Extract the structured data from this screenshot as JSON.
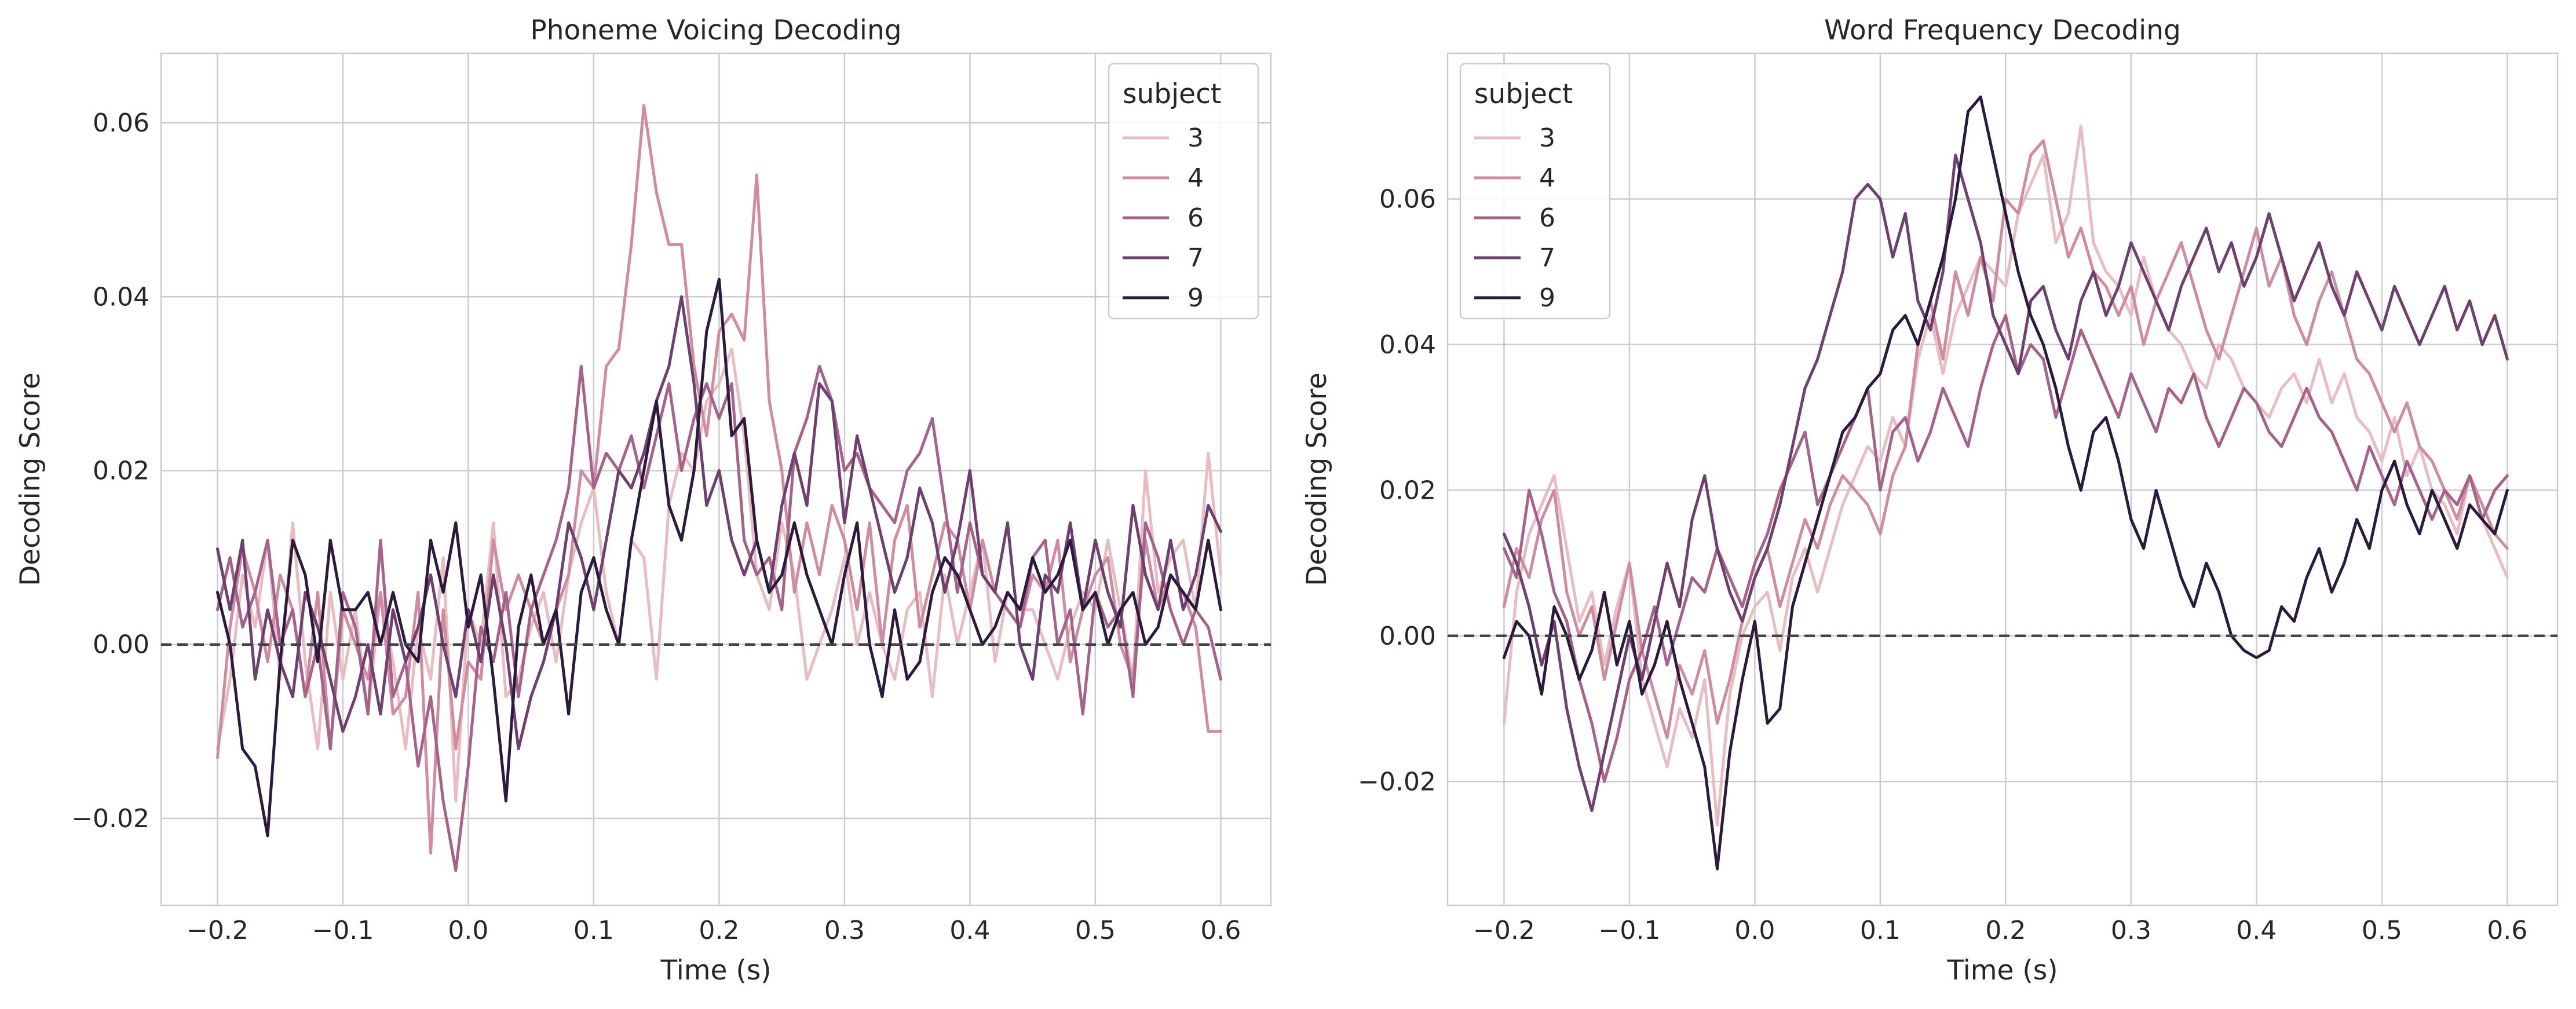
{
  "chart_data": [
    {
      "type": "line",
      "title": "Phoneme Voicing Decoding",
      "xlabel": "Time (s)",
      "ylabel": "Decoding Score",
      "xlim": [
        -0.245,
        0.64
      ],
      "ylim": [
        -0.03,
        0.068
      ],
      "xticks": [
        -0.2,
        -0.1,
        0.0,
        0.1,
        0.2,
        0.3,
        0.4,
        0.5,
        0.6
      ],
      "xtick_labels": [
        "−0.2",
        "−0.1",
        "0.0",
        "0.1",
        "0.2",
        "0.3",
        "0.4",
        "0.5",
        "0.6"
      ],
      "yticks": [
        -0.02,
        0.0,
        0.02,
        0.04,
        0.06
      ],
      "ytick_labels": [
        "−0.02",
        "0.00",
        "0.02",
        "0.04",
        "0.06"
      ],
      "zero_line": 0,
      "grid": true,
      "legend": {
        "title": "subject",
        "position": "upper-right"
      },
      "x": {
        "start": -0.2,
        "stop": 0.6,
        "step": 0.01
      },
      "series": [
        {
          "name": "3",
          "color": "#e9bcc2",
          "values": [
            -0.012,
            -0.004,
            0.008,
            0.002,
            0.012,
            -0.004,
            0.014,
            -0.002,
            -0.012,
            0.006,
            -0.004,
            0.004,
            -0.008,
            0.006,
            -0.002,
            -0.012,
            0.002,
            -0.004,
            0.01,
            -0.018,
            0.004,
            0.0,
            0.014,
            -0.006,
            -0.004,
            0.002,
            0.006,
            -0.002,
            0.008,
            0.014,
            0.018,
            0.006,
            0.0,
            0.012,
            0.01,
            -0.004,
            0.016,
            0.022,
            0.02,
            0.028,
            0.03,
            0.034,
            0.024,
            0.008,
            0.004,
            0.014,
            0.008,
            -0.004,
            0.0,
            0.004,
            0.01,
            0.0,
            0.006,
            0.0,
            -0.004,
            0.004,
            0.006,
            -0.006,
            0.008,
            0.0,
            0.006,
            0.012,
            -0.002,
            0.006,
            0.004,
            0.004,
            0.0,
            -0.004,
            0.002,
            0.006,
            0.004,
            0.012,
            0.004,
            -0.004,
            0.02,
            0.006,
            0.01,
            0.012,
            0.004,
            0.022,
            0.008
          ]
        },
        {
          "name": "4",
          "color": "#d08b9f",
          "values": [
            -0.013,
            0.002,
            0.011,
            0.006,
            -0.002,
            0.008,
            0.004,
            -0.006,
            0.006,
            -0.012,
            0.004,
            0.0,
            -0.004,
            0.006,
            -0.008,
            -0.006,
            0.006,
            -0.024,
            0.004,
            -0.012,
            -0.002,
            -0.004,
            0.012,
            0.004,
            0.008,
            0.004,
            0.0,
            0.004,
            0.008,
            0.02,
            0.018,
            0.032,
            0.034,
            0.046,
            0.062,
            0.052,
            0.046,
            0.046,
            0.032,
            0.024,
            0.036,
            0.038,
            0.035,
            0.054,
            0.028,
            0.02,
            0.006,
            0.014,
            0.008,
            0.016,
            0.012,
            0.004,
            0.014,
            0.0,
            0.012,
            0.016,
            0.002,
            0.008,
            0.014,
            0.012,
            0.004,
            0.012,
            0.006,
            0.004,
            0.002,
            0.008,
            0.006,
            0.012,
            -0.002,
            0.004,
            0.008,
            0.01,
            0.0,
            -0.004,
            0.012,
            0.004,
            0.008,
            0.006,
            0.002,
            -0.01,
            -0.01
          ]
        },
        {
          "name": "6",
          "color": "#a6628b",
          "values": [
            0.004,
            0.01,
            0.002,
            0.006,
            0.012,
            0.0,
            0.004,
            -0.006,
            0.0,
            -0.012,
            0.006,
            0.002,
            -0.008,
            0.012,
            -0.006,
            -0.002,
            -0.014,
            -0.006,
            -0.018,
            -0.026,
            -0.014,
            0.002,
            -0.002,
            0.006,
            -0.006,
            0.004,
            0.008,
            0.012,
            0.018,
            0.032,
            0.018,
            0.022,
            0.02,
            0.024,
            0.018,
            0.024,
            0.03,
            0.02,
            0.026,
            0.03,
            0.026,
            0.03,
            0.012,
            0.008,
            0.01,
            0.004,
            0.022,
            0.026,
            0.032,
            0.028,
            0.02,
            0.022,
            0.018,
            0.016,
            0.014,
            0.02,
            0.022,
            0.026,
            0.016,
            0.006,
            0.014,
            0.008,
            0.006,
            0.004,
            0.002,
            0.01,
            0.012,
            0.0,
            0.004,
            -0.008,
            0.006,
            0.002,
            0.004,
            -0.006,
            0.014,
            0.01,
            0.004,
            0.0,
            0.004,
            0.002,
            -0.004
          ]
        },
        {
          "name": "7",
          "color": "#6f3f70",
          "values": [
            0.011,
            0.004,
            0.012,
            -0.004,
            0.004,
            -0.002,
            -0.006,
            0.006,
            0.002,
            -0.004,
            -0.01,
            -0.006,
            0.0,
            -0.008,
            0.004,
            -0.002,
            0.002,
            0.008,
            0.0,
            -0.006,
            0.004,
            -0.002,
            0.008,
            0.0,
            -0.012,
            -0.006,
            -0.002,
            0.004,
            0.014,
            0.01,
            0.004,
            0.012,
            0.02,
            0.018,
            0.022,
            0.028,
            0.032,
            0.04,
            0.03,
            0.016,
            0.02,
            0.012,
            0.008,
            0.012,
            0.006,
            0.016,
            0.022,
            0.016,
            0.03,
            0.028,
            0.014,
            0.024,
            0.018,
            0.012,
            0.006,
            0.01,
            0.018,
            0.014,
            0.006,
            0.012,
            0.02,
            0.008,
            0.006,
            0.014,
            0.0,
            -0.004,
            0.008,
            0.006,
            0.014,
            0.004,
            0.012,
            0.006,
            0.002,
            0.016,
            0.008,
            0.004,
            0.012,
            0.004,
            0.008,
            0.016,
            0.013
          ]
        },
        {
          "name": "9",
          "color": "#2b1a3d",
          "values": [
            0.006,
            0.0,
            -0.012,
            -0.014,
            -0.022,
            -0.002,
            0.012,
            0.008,
            -0.002,
            0.012,
            0.004,
            0.004,
            0.006,
            0.0,
            0.006,
            0.0,
            -0.002,
            0.012,
            0.006,
            0.014,
            0.002,
            0.008,
            -0.004,
            -0.018,
            0.002,
            0.008,
            0.0,
            0.004,
            -0.008,
            0.006,
            0.01,
            0.004,
            0.0,
            0.012,
            0.02,
            0.028,
            0.016,
            0.012,
            0.02,
            0.036,
            0.042,
            0.024,
            0.026,
            0.012,
            0.006,
            0.008,
            0.014,
            0.008,
            0.004,
            0.0,
            0.008,
            0.014,
            0.0,
            -0.006,
            0.004,
            -0.004,
            -0.002,
            0.006,
            0.01,
            0.008,
            0.004,
            0.0,
            0.002,
            0.006,
            0.004,
            0.01,
            0.006,
            0.008,
            0.012,
            0.004,
            0.006,
            0.0,
            0.004,
            0.006,
            0.0,
            0.002,
            0.008,
            0.006,
            0.004,
            0.012,
            0.004
          ]
        }
      ]
    },
    {
      "type": "line",
      "title": "Word Frequency Decoding",
      "xlabel": "Time (s)",
      "ylabel": "Decoding Score",
      "xlim": [
        -0.245,
        0.64
      ],
      "ylim": [
        -0.037,
        0.08
      ],
      "xticks": [
        -0.2,
        -0.1,
        0.0,
        0.1,
        0.2,
        0.3,
        0.4,
        0.5,
        0.6
      ],
      "xtick_labels": [
        "−0.2",
        "−0.1",
        "0.0",
        "0.1",
        "0.2",
        "0.3",
        "0.4",
        "0.5",
        "0.6"
      ],
      "yticks": [
        -0.02,
        0.0,
        0.02,
        0.04,
        0.06
      ],
      "ytick_labels": [
        "−0.02",
        "0.00",
        "0.02",
        "0.04",
        "0.06"
      ],
      "zero_line": 0,
      "grid": true,
      "legend": {
        "title": "subject",
        "position": "upper-left"
      },
      "x": {
        "start": -0.2,
        "stop": 0.6,
        "step": 0.01
      },
      "series": [
        {
          "name": "3",
          "color": "#e9bcc2",
          "values": [
            -0.012,
            0.006,
            0.014,
            0.018,
            0.022,
            0.012,
            0.002,
            0.006,
            -0.004,
            0.004,
            0.01,
            -0.006,
            -0.012,
            -0.018,
            -0.01,
            -0.014,
            -0.006,
            -0.026,
            -0.008,
            0.0,
            0.004,
            0.006,
            -0.002,
            0.008,
            0.012,
            0.006,
            0.012,
            0.018,
            0.022,
            0.026,
            0.024,
            0.03,
            0.026,
            0.038,
            0.044,
            0.036,
            0.044,
            0.048,
            0.052,
            0.05,
            0.048,
            0.058,
            0.062,
            0.066,
            0.054,
            0.058,
            0.07,
            0.054,
            0.05,
            0.048,
            0.044,
            0.052,
            0.046,
            0.042,
            0.04,
            0.036,
            0.034,
            0.04,
            0.038,
            0.034,
            0.032,
            0.03,
            0.034,
            0.036,
            0.032,
            0.038,
            0.032,
            0.036,
            0.03,
            0.028,
            0.024,
            0.03,
            0.022,
            0.026,
            0.02,
            0.018,
            0.014,
            0.022,
            0.016,
            0.012,
            0.008
          ]
        },
        {
          "name": "4",
          "color": "#d08b9f",
          "values": [
            0.004,
            0.012,
            0.008,
            0.016,
            0.02,
            0.006,
            0.0,
            0.004,
            -0.006,
            0.002,
            0.01,
            -0.002,
            -0.008,
            -0.014,
            -0.004,
            -0.008,
            -0.002,
            -0.012,
            -0.006,
            0.002,
            0.008,
            0.012,
            0.004,
            0.01,
            0.016,
            0.012,
            0.018,
            0.022,
            0.02,
            0.018,
            0.014,
            0.022,
            0.026,
            0.04,
            0.046,
            0.038,
            0.05,
            0.044,
            0.052,
            0.046,
            0.06,
            0.058,
            0.066,
            0.068,
            0.06,
            0.052,
            0.056,
            0.05,
            0.048,
            0.044,
            0.048,
            0.04,
            0.046,
            0.05,
            0.054,
            0.048,
            0.042,
            0.038,
            0.044,
            0.05,
            0.056,
            0.048,
            0.052,
            0.044,
            0.04,
            0.046,
            0.05,
            0.044,
            0.038,
            0.036,
            0.032,
            0.028,
            0.032,
            0.026,
            0.024,
            0.02,
            0.016,
            0.022,
            0.018,
            0.014,
            0.012
          ]
        },
        {
          "name": "6",
          "color": "#a6628b",
          "values": [
            0.012,
            0.008,
            0.02,
            0.014,
            0.006,
            0.002,
            -0.006,
            -0.012,
            -0.02,
            -0.014,
            -0.006,
            -0.002,
            0.004,
            -0.004,
            0.002,
            0.008,
            0.006,
            0.012,
            0.008,
            0.004,
            0.01,
            0.014,
            0.02,
            0.024,
            0.028,
            0.018,
            0.022,
            0.026,
            0.03,
            0.034,
            0.02,
            0.028,
            0.03,
            0.024,
            0.028,
            0.034,
            0.03,
            0.026,
            0.034,
            0.04,
            0.044,
            0.036,
            0.04,
            0.038,
            0.03,
            0.036,
            0.042,
            0.038,
            0.034,
            0.03,
            0.036,
            0.032,
            0.028,
            0.034,
            0.032,
            0.036,
            0.03,
            0.026,
            0.03,
            0.034,
            0.032,
            0.028,
            0.026,
            0.03,
            0.034,
            0.03,
            0.028,
            0.024,
            0.02,
            0.026,
            0.022,
            0.018,
            0.024,
            0.02,
            0.016,
            0.02,
            0.018,
            0.022,
            0.016,
            0.02,
            0.022
          ]
        },
        {
          "name": "7",
          "color": "#6f3f70",
          "values": [
            0.014,
            0.01,
            0.004,
            -0.004,
            0.002,
            -0.01,
            -0.018,
            -0.024,
            -0.016,
            -0.008,
            0.0,
            -0.006,
            0.002,
            0.01,
            0.004,
            0.016,
            0.022,
            0.012,
            0.006,
            0.002,
            0.008,
            0.012,
            0.018,
            0.026,
            0.034,
            0.038,
            0.044,
            0.05,
            0.06,
            0.062,
            0.06,
            0.052,
            0.058,
            0.046,
            0.042,
            0.05,
            0.066,
            0.06,
            0.054,
            0.044,
            0.04,
            0.036,
            0.046,
            0.048,
            0.042,
            0.038,
            0.046,
            0.05,
            0.044,
            0.048,
            0.054,
            0.05,
            0.046,
            0.042,
            0.048,
            0.052,
            0.056,
            0.05,
            0.054,
            0.048,
            0.052,
            0.058,
            0.052,
            0.046,
            0.05,
            0.054,
            0.048,
            0.044,
            0.05,
            0.046,
            0.042,
            0.048,
            0.044,
            0.04,
            0.044,
            0.048,
            0.042,
            0.046,
            0.04,
            0.044,
            0.038
          ]
        },
        {
          "name": "9",
          "color": "#2b1a3d",
          "values": [
            -0.003,
            0.002,
            0.0,
            -0.008,
            0.004,
            0.0,
            -0.006,
            -0.002,
            0.006,
            -0.004,
            0.002,
            -0.008,
            -0.004,
            0.002,
            -0.006,
            -0.012,
            -0.018,
            -0.032,
            -0.016,
            -0.006,
            0.002,
            -0.012,
            -0.01,
            0.004,
            0.01,
            0.016,
            0.022,
            0.028,
            0.03,
            0.034,
            0.036,
            0.042,
            0.044,
            0.04,
            0.046,
            0.052,
            0.06,
            0.072,
            0.074,
            0.066,
            0.058,
            0.05,
            0.044,
            0.04,
            0.034,
            0.026,
            0.02,
            0.028,
            0.03,
            0.024,
            0.016,
            0.012,
            0.02,
            0.014,
            0.008,
            0.004,
            0.01,
            0.006,
            0.0,
            -0.002,
            -0.003,
            -0.002,
            0.004,
            0.002,
            0.008,
            0.012,
            0.006,
            0.01,
            0.016,
            0.012,
            0.02,
            0.024,
            0.018,
            0.014,
            0.02,
            0.016,
            0.012,
            0.018,
            0.016,
            0.014,
            0.02
          ]
        }
      ]
    }
  ]
}
